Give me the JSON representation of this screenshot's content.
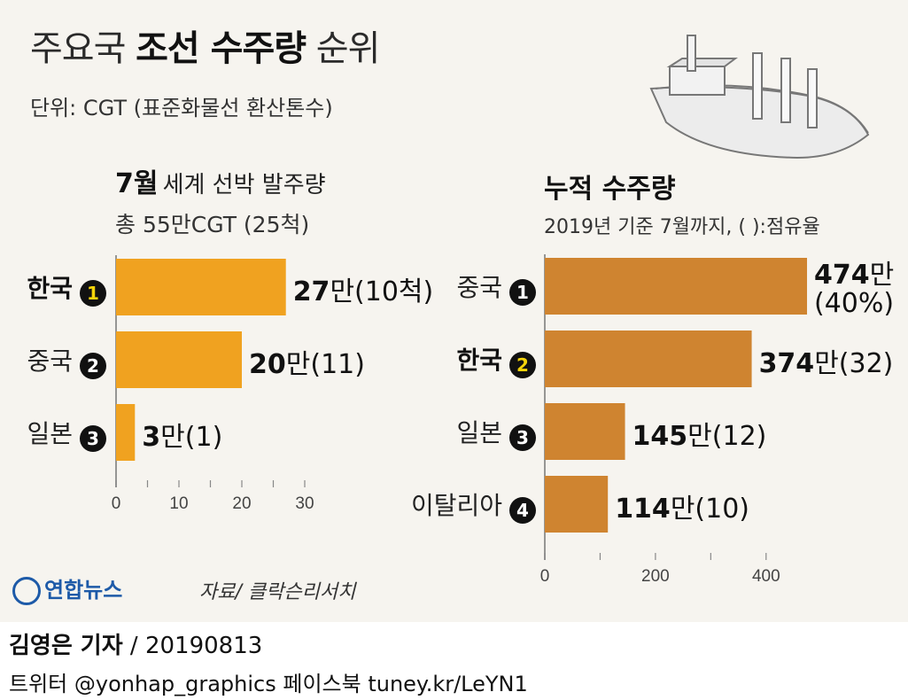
{
  "header": {
    "title_normal_1": "주요국 ",
    "title_bold": "조선 수주량",
    "title_normal_2": " 순위",
    "unit": "단위: CGT (표준화물선 환산톤수)"
  },
  "chart_data": [
    {
      "type": "bar",
      "orientation": "horizontal",
      "title_bold": "7월",
      "title": "세계 선박 발주량",
      "subtitle": "총 55만CGT (25척)",
      "categories": [
        "한국",
        "중국",
        "일본"
      ],
      "ranks": [
        "1",
        "2",
        "3"
      ],
      "highlight": [
        true,
        false,
        false
      ],
      "values": [
        27,
        20,
        3
      ],
      "value_labels": [
        "27",
        "20",
        "3"
      ],
      "value_unit": "만",
      "extra_labels": [
        "(10척)",
        "(11)",
        "(1)"
      ],
      "xlim": [
        0,
        30
      ],
      "xticks": [
        "0",
        "10",
        "20",
        "30"
      ],
      "bar_color": "#f0a220"
    },
    {
      "type": "bar",
      "orientation": "horizontal",
      "title": "누적 수주량",
      "subtitle": "2019년 기준 7월까지, ( ):점유율",
      "categories": [
        "중국",
        "한국",
        "일본",
        "이탈리아"
      ],
      "ranks": [
        "1",
        "2",
        "3",
        "4"
      ],
      "highlight": [
        false,
        true,
        false,
        false
      ],
      "values": [
        474,
        374,
        145,
        114
      ],
      "value_labels": [
        "474",
        "374",
        "145",
        "114"
      ],
      "value_unit": "만",
      "extra_labels": [
        "(40%)",
        "(32)",
        "(12)",
        "(10)"
      ],
      "xlim": [
        0,
        474
      ],
      "xticks": [
        "0",
        "200",
        "400"
      ],
      "bar_color": "#cf8430"
    }
  ],
  "footer": {
    "logo": "연합뉴스",
    "source": "자료/ 클락슨리서치",
    "author": "김영은 기자",
    "date": " / 20190813",
    "sns": "트위터 @yonhap_graphics  페이스북 tuney.kr/LeYN1"
  },
  "colors": {
    "background": "#f6f4ef",
    "badge": "#111111",
    "badge_highlight_text": "#f5d40a"
  }
}
